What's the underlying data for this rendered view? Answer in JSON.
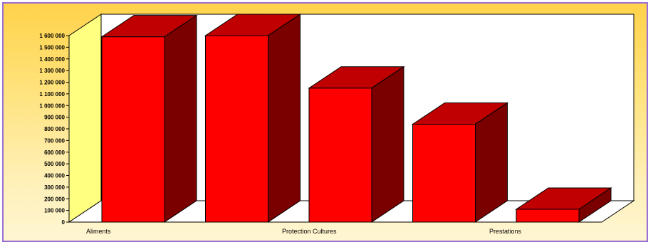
{
  "chart_data": {
    "type": "bar",
    "style": "3d",
    "categories": [
      "Aliments",
      "",
      "Protection Cultures",
      "",
      "Prestations"
    ],
    "values": [
      1590000,
      1600000,
      1150000,
      840000,
      110000
    ],
    "ylim": [
      0,
      1600000
    ],
    "yticks": [
      0,
      100000,
      200000,
      300000,
      400000,
      500000,
      600000,
      700000,
      800000,
      900000,
      1000000,
      1100000,
      1200000,
      1300000,
      1400000,
      1500000,
      1600000
    ],
    "ytick_labels": [
      "0",
      "100 000",
      "200 000",
      "300 000",
      "400 000",
      "500 000",
      "600 000",
      "700 000",
      "800 000",
      "900 000",
      "1 000 000",
      "1 100 000",
      "1 200 000",
      "1 300 000",
      "1 400 000",
      "1 500 000",
      "1 600 000"
    ],
    "xlabel": "",
    "ylabel": "",
    "title": "",
    "grid": false,
    "legend": "none",
    "colors": {
      "bar_front": "#ff0000",
      "bar_top": "#c00000",
      "bar_side": "#7a0000",
      "back_wall": "#ffffff",
      "side_wall": "#ffff80",
      "frame_border": "#9a6fd6"
    }
  }
}
